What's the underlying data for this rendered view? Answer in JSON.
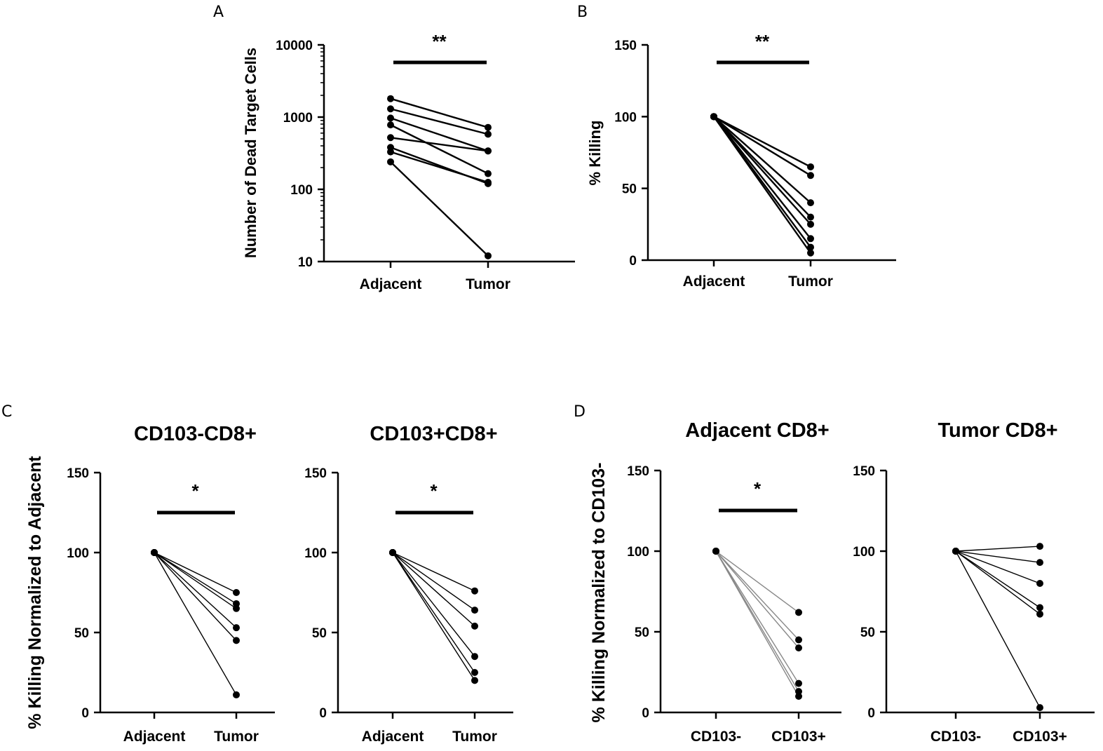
{
  "chart_data": [
    {
      "panel": "A",
      "type": "line",
      "scale": "log",
      "title": "",
      "ylabel": "Number of Dead Target Cells",
      "categories": [
        "Adjacent",
        "Tumor"
      ],
      "ylim": [
        10,
        10000
      ],
      "yticks": [
        10,
        100,
        1000,
        10000
      ],
      "significance": "**",
      "pairs": [
        [
          1800,
          720
        ],
        [
          1300,
          580
        ],
        [
          970,
          340
        ],
        [
          780,
          165
        ],
        [
          520,
          340
        ],
        [
          380,
          120
        ],
        [
          330,
          125
        ],
        [
          240,
          12
        ]
      ]
    },
    {
      "panel": "B",
      "type": "line",
      "scale": "linear",
      "title": "",
      "ylabel": "% Killing",
      "categories": [
        "Adjacent",
        "Tumor"
      ],
      "ylim": [
        0,
        150
      ],
      "yticks": [
        0,
        50,
        100,
        150
      ],
      "significance": "**",
      "pairs": [
        [
          100,
          65
        ],
        [
          100,
          59
        ],
        [
          100,
          40
        ],
        [
          100,
          30
        ],
        [
          100,
          25
        ],
        [
          100,
          15
        ],
        [
          100,
          9
        ],
        [
          100,
          5
        ]
      ]
    },
    {
      "panel": "C",
      "type": "line",
      "scale": "linear",
      "title": "CD103-CD8+",
      "ylabel": "% Killing Normalized to Adjacent",
      "categories": [
        "Adjacent",
        "Tumor"
      ],
      "ylim": [
        0,
        150
      ],
      "yticks": [
        0,
        50,
        100,
        150
      ],
      "significance": "*",
      "pairs": [
        [
          100,
          75
        ],
        [
          100,
          68
        ],
        [
          100,
          65
        ],
        [
          100,
          53
        ],
        [
          100,
          45
        ],
        [
          100,
          11
        ]
      ]
    },
    {
      "panel": "",
      "type": "line",
      "scale": "linear",
      "title": "CD103+CD8+",
      "ylabel": "",
      "categories": [
        "Adjacent",
        "Tumor"
      ],
      "ylim": [
        0,
        150
      ],
      "yticks": [
        0,
        50,
        100,
        150
      ],
      "significance": "*",
      "pairs": [
        [
          100,
          76
        ],
        [
          100,
          64
        ],
        [
          100,
          54
        ],
        [
          100,
          35
        ],
        [
          100,
          25
        ],
        [
          100,
          20
        ]
      ]
    },
    {
      "panel": "D",
      "type": "line",
      "scale": "linear",
      "title": "Adjacent CD8+",
      "ylabel": "% Killing Normalized to CD103-",
      "categories": [
        "CD103-",
        "CD103+"
      ],
      "ylim": [
        0,
        150
      ],
      "yticks": [
        0,
        50,
        100,
        150
      ],
      "significance": "*",
      "line_color": "#888888",
      "pairs": [
        [
          100,
          62
        ],
        [
          100,
          45
        ],
        [
          100,
          40
        ],
        [
          100,
          18
        ],
        [
          100,
          13
        ],
        [
          100,
          10
        ]
      ]
    },
    {
      "panel": "",
      "type": "line",
      "scale": "linear",
      "title": "Tumor CD8+",
      "ylabel": "",
      "categories": [
        "CD103-",
        "CD103+"
      ],
      "ylim": [
        0,
        150
      ],
      "yticks": [
        0,
        50,
        100,
        150
      ],
      "significance": "",
      "pairs": [
        [
          100,
          103
        ],
        [
          100,
          93
        ],
        [
          100,
          80
        ],
        [
          100,
          65
        ],
        [
          100,
          61
        ],
        [
          100,
          3
        ]
      ]
    }
  ]
}
